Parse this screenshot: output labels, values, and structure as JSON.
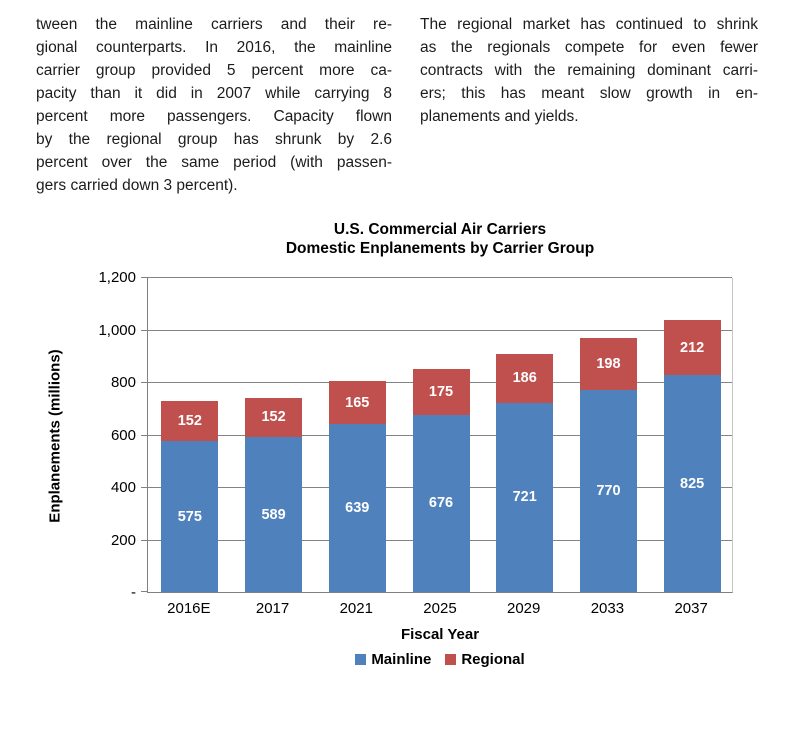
{
  "document": {
    "left_column": {
      "lines": [
        "tween the mainline carriers and their re-",
        "gional counterparts.  In 2016, the mainline",
        "carrier group provided 5 percent more ca-",
        "pacity than it did in 2007 while carrying 8",
        "percent more passengers.  Capacity flown",
        "by the regional group has shrunk by 2.6",
        "percent over the same period (with passen-",
        "gers carried down 3 percent)."
      ]
    },
    "right_column": {
      "lines": [
        "The regional market has continued to shrink",
        "as the regionals compete for even fewer",
        "contracts with the remaining dominant carri-",
        "ers; this has meant slow growth in en-",
        "planements and yields."
      ]
    }
  },
  "chart_data": {
    "type": "bar",
    "stacked": true,
    "title": "U.S. Commercial Air Carriers",
    "subtitle": "Domestic Enplanements by Carrier Group",
    "xlabel": "Fiscal Year",
    "ylabel": "Enplanements (millions)",
    "categories": [
      "2016E",
      "2017",
      "2021",
      "2025",
      "2029",
      "2033",
      "2037"
    ],
    "series": [
      {
        "name": "Mainline",
        "color": "#4F81BD",
        "values": [
          575,
          589,
          639,
          676,
          721,
          770,
          825
        ]
      },
      {
        "name": "Regional",
        "color": "#C0504D",
        "values": [
          152,
          152,
          165,
          175,
          186,
          198,
          212
        ]
      }
    ],
    "totals": [
      727,
      741,
      804,
      851,
      907,
      968,
      1037
    ],
    "ylim": [
      0,
      1200
    ],
    "yticks": {
      "values": [
        0,
        200,
        400,
        600,
        800,
        1000,
        1200
      ],
      "labels": [
        "-",
        "200",
        "400",
        "600",
        "800",
        "1,000",
        "1,200"
      ]
    },
    "grid": true,
    "legend_position": "bottom",
    "data_labels": "center-white-bold"
  }
}
